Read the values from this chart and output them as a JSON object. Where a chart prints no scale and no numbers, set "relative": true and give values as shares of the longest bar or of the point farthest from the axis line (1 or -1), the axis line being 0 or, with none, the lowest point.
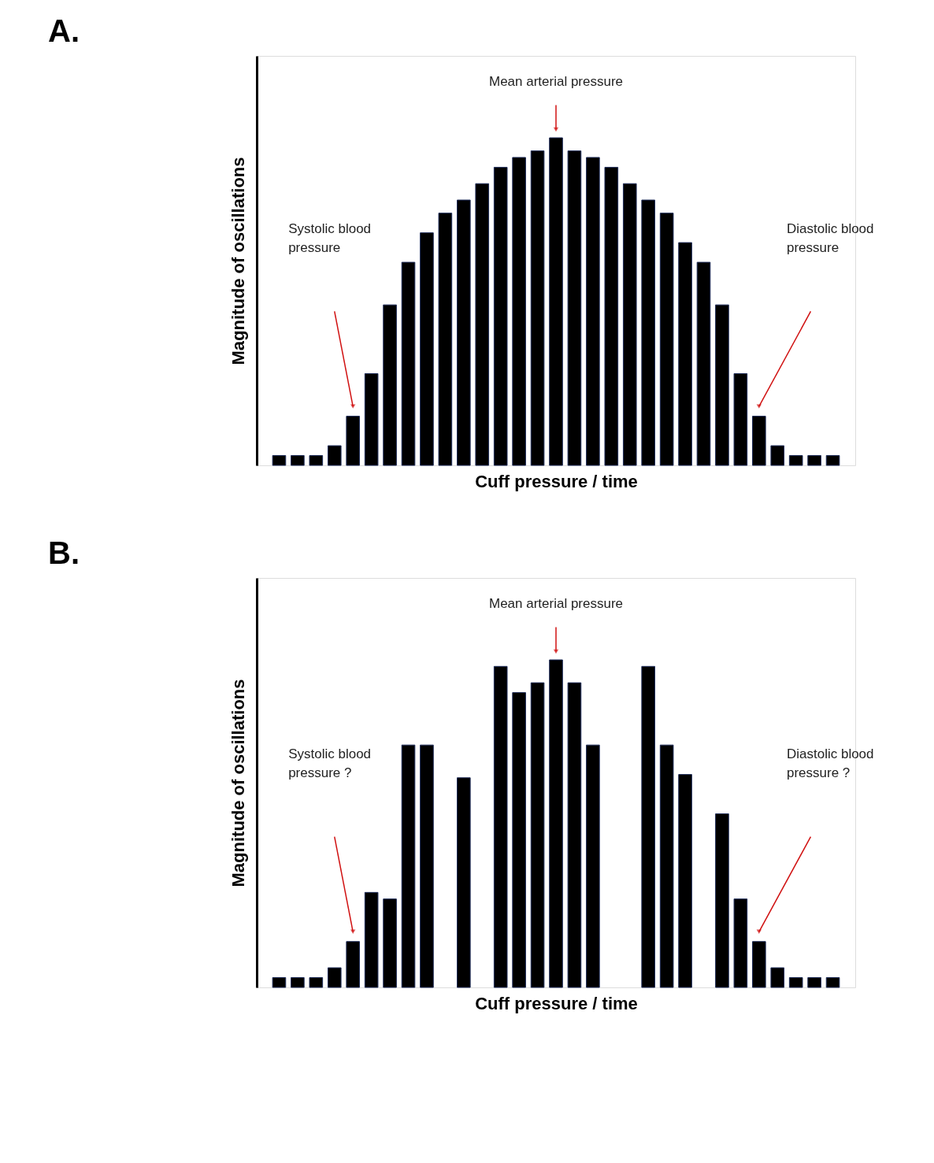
{
  "chart_data": [
    {
      "type": "bar",
      "title": "A.",
      "xlabel": "Cuff pressure / time",
      "ylabel": "Magnitude of oscillations",
      "relative": true,
      "color": "#000000",
      "categories": [
        null,
        null,
        null,
        null,
        null,
        null,
        null,
        null,
        null,
        null,
        null,
        null,
        null,
        null,
        null,
        null,
        null,
        null,
        null,
        null,
        null,
        null,
        null,
        null,
        null,
        null,
        null,
        null,
        null,
        null,
        null
      ],
      "values": [
        0.03,
        0.03,
        0.03,
        0.06,
        0.15,
        0.28,
        0.49,
        0.62,
        0.71,
        0.77,
        0.81,
        0.86,
        0.91,
        0.94,
        0.96,
        1,
        0.96,
        0.94,
        0.91,
        0.86,
        0.81,
        0.77,
        0.68,
        0.62,
        0.49,
        0.28,
        0.15,
        0.06,
        0.03,
        0.03,
        0.03
      ],
      "annotations": [
        "Mean arterial pressure",
        "Systolic blood pressure",
        "Diastolic blood pressure"
      ]
    },
    {
      "type": "bar",
      "title": "B.",
      "xlabel": "Cuff pressure / time",
      "ylabel": "Magnitude of oscillations",
      "relative": true,
      "color": "#000000",
      "categories": [
        null,
        null,
        null,
        null,
        null,
        null,
        null,
        null,
        null,
        null,
        null,
        null,
        null,
        null,
        null,
        null,
        null,
        null,
        null,
        null,
        null,
        null,
        null,
        null,
        null,
        null,
        null,
        null,
        null,
        null,
        null
      ],
      "values": [
        0.03,
        0.03,
        0.03,
        0.06,
        0.14,
        0.29,
        0.27,
        0.74,
        0.74,
        null,
        0.64,
        null,
        0.98,
        0.9,
        0.93,
        1,
        0.93,
        0.74,
        null,
        null,
        0.98,
        0.74,
        0.65,
        null,
        0.53,
        0.27,
        0.14,
        0.06,
        0.03,
        0.03,
        0.03
      ],
      "annotations": [
        "Mean arterial pressure",
        "Systolic blood pressure ?",
        "Diastolic blood pressure ?"
      ]
    }
  ]
}
